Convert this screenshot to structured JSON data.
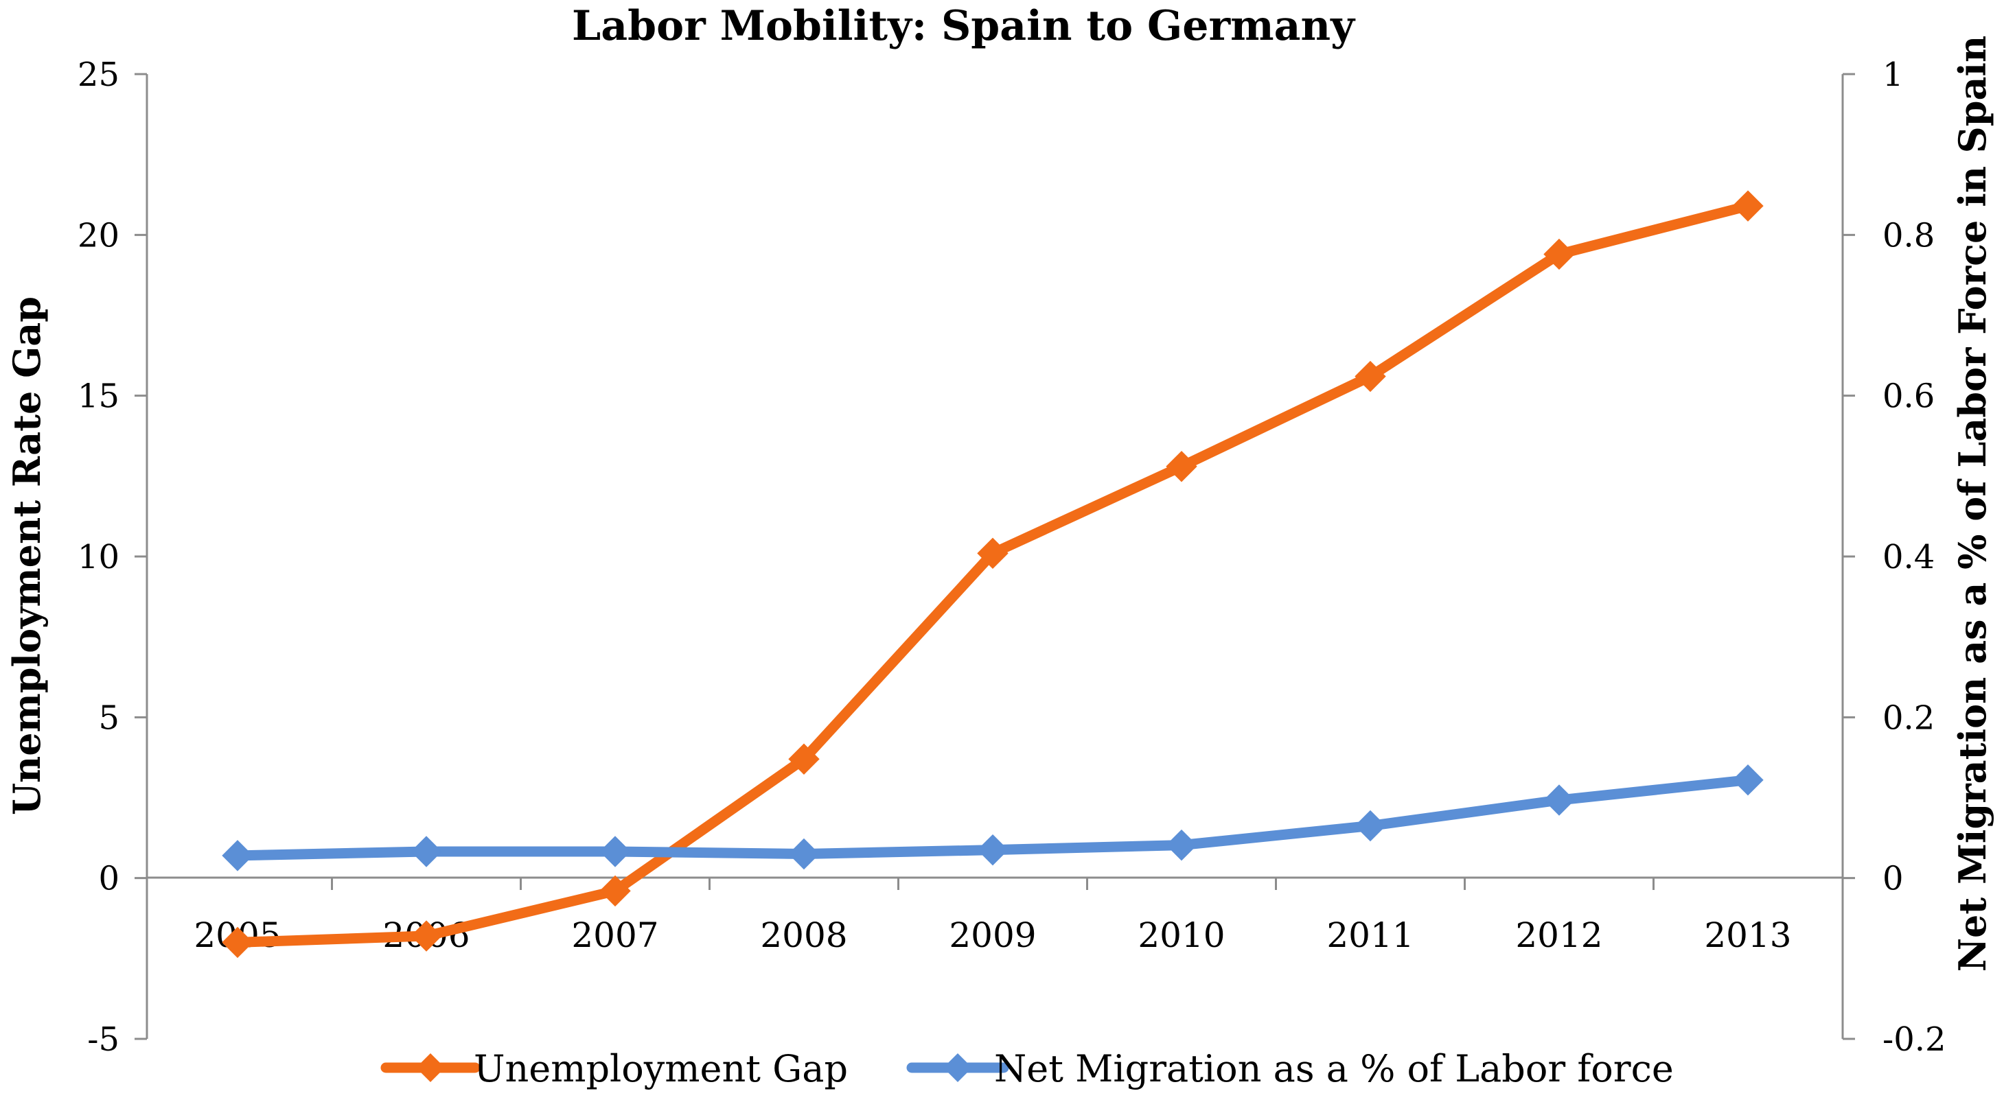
{
  "chart_data": {
    "type": "line",
    "title": "Labor Mobility: Spain to Germany",
    "categories": [
      "2005",
      "2006",
      "2007",
      "2008",
      "2009",
      "2010",
      "2011",
      "2012",
      "2013"
    ],
    "y_left": {
      "label": "Unemployment Rate Gap",
      "range": [
        -5,
        25
      ],
      "ticks": [
        "25",
        "20",
        "15",
        "10",
        "5",
        "0",
        "-5"
      ]
    },
    "y_right": {
      "label": "Net Migration as a % of Labor Force in Spain",
      "range": [
        -0.2,
        1
      ],
      "ticks": [
        "1",
        "0.8",
        "0.6",
        "0.4",
        "0.2",
        "0",
        "-0.2"
      ]
    },
    "series": [
      {
        "name": "Unemployment Gap",
        "axis": "left",
        "color": "#F26C17",
        "values": [
          -2.0,
          -1.8,
          -0.4,
          3.7,
          10.1,
          12.8,
          15.6,
          19.4,
          20.9
        ]
      },
      {
        "name": "Net Migration as a % of Labor force",
        "axis": "right",
        "color": "#5B8FD6",
        "values": [
          0.028,
          0.033,
          0.033,
          0.03,
          0.035,
          0.041,
          0.065,
          0.097,
          0.122
        ]
      }
    ],
    "legend": "bottom-center",
    "grid": false
  }
}
